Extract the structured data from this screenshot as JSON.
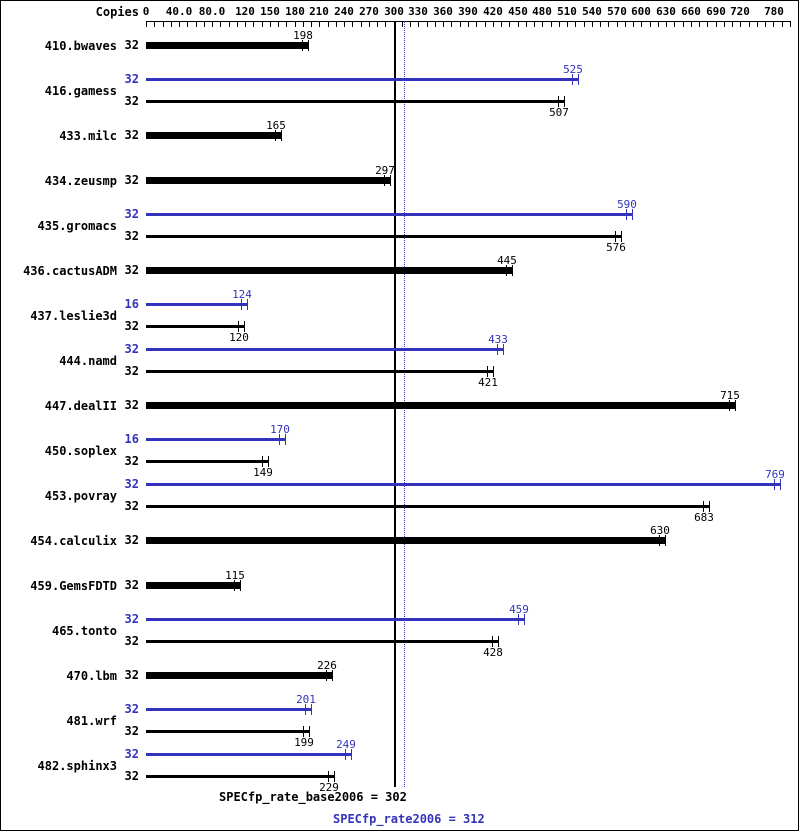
{
  "chart_data": {
    "type": "bar",
    "orientation": "horizontal",
    "copies_header": "Copies",
    "axis": {
      "min": 0,
      "max": 780,
      "tick_interval": 10,
      "labels": [
        {
          "value": 0,
          "text": "0"
        },
        {
          "value": 40,
          "text": "40.0"
        },
        {
          "value": 80,
          "text": "80.0"
        },
        {
          "value": 120,
          "text": "120"
        },
        {
          "value": 150,
          "text": "150"
        },
        {
          "value": 180,
          "text": "180"
        },
        {
          "value": 210,
          "text": "210"
        },
        {
          "value": 240,
          "text": "240"
        },
        {
          "value": 270,
          "text": "270"
        },
        {
          "value": 300,
          "text": "300"
        },
        {
          "value": 330,
          "text": "330"
        },
        {
          "value": 360,
          "text": "360"
        },
        {
          "value": 390,
          "text": "390"
        },
        {
          "value": 420,
          "text": "420"
        },
        {
          "value": 450,
          "text": "450"
        },
        {
          "value": 480,
          "text": "480"
        },
        {
          "value": 510,
          "text": "510"
        },
        {
          "value": 540,
          "text": "540"
        },
        {
          "value": 570,
          "text": "570"
        },
        {
          "value": 600,
          "text": "600"
        },
        {
          "value": 630,
          "text": "630"
        },
        {
          "value": 660,
          "text": "660"
        },
        {
          "value": 690,
          "text": "690"
        },
        {
          "value": 720,
          "text": "720"
        },
        {
          "value": 780,
          "text": "780"
        }
      ]
    },
    "colors": {
      "base": "#000000",
      "peak": "#3333bb"
    },
    "mean_lines": [
      {
        "name": "base",
        "value": 302,
        "style": "solid",
        "color": "#000000"
      },
      {
        "name": "peak",
        "value": 312,
        "style": "dotted",
        "color": "#3333bb"
      }
    ],
    "benchmarks": [
      {
        "name": "410.bwaves",
        "bars": [
          {
            "kind": "single",
            "copies": 32,
            "value": 198
          }
        ]
      },
      {
        "name": "416.gamess",
        "bars": [
          {
            "kind": "peak",
            "copies": 32,
            "value": 525
          },
          {
            "kind": "base",
            "copies": 32,
            "value": 507
          }
        ]
      },
      {
        "name": "433.milc",
        "bars": [
          {
            "kind": "single",
            "copies": 32,
            "value": 165
          }
        ]
      },
      {
        "name": "434.zeusmp",
        "bars": [
          {
            "kind": "single",
            "copies": 32,
            "value": 297
          }
        ]
      },
      {
        "name": "435.gromacs",
        "bars": [
          {
            "kind": "peak",
            "copies": 32,
            "value": 590
          },
          {
            "kind": "base",
            "copies": 32,
            "value": 576
          }
        ]
      },
      {
        "name": "436.cactusADM",
        "bars": [
          {
            "kind": "single",
            "copies": 32,
            "value": 445
          }
        ]
      },
      {
        "name": "437.leslie3d",
        "bars": [
          {
            "kind": "peak",
            "copies": 16,
            "value": 124
          },
          {
            "kind": "base",
            "copies": 32,
            "value": 120
          }
        ]
      },
      {
        "name": "444.namd",
        "bars": [
          {
            "kind": "peak",
            "copies": 32,
            "value": 433
          },
          {
            "kind": "base",
            "copies": 32,
            "value": 421
          }
        ]
      },
      {
        "name": "447.dealII",
        "bars": [
          {
            "kind": "single",
            "copies": 32,
            "value": 715
          }
        ]
      },
      {
        "name": "450.soplex",
        "bars": [
          {
            "kind": "peak",
            "copies": 16,
            "value": 170
          },
          {
            "kind": "base",
            "copies": 32,
            "value": 149
          }
        ]
      },
      {
        "name": "453.povray",
        "bars": [
          {
            "kind": "peak",
            "copies": 32,
            "value": 769
          },
          {
            "kind": "base",
            "copies": 32,
            "value": 683
          }
        ]
      },
      {
        "name": "454.calculix",
        "bars": [
          {
            "kind": "single",
            "copies": 32,
            "value": 630
          }
        ]
      },
      {
        "name": "459.GemsFDTD",
        "bars": [
          {
            "kind": "single",
            "copies": 32,
            "value": 115
          }
        ]
      },
      {
        "name": "465.tonto",
        "bars": [
          {
            "kind": "peak",
            "copies": 32,
            "value": 459
          },
          {
            "kind": "base",
            "copies": 32,
            "value": 428
          }
        ]
      },
      {
        "name": "470.lbm",
        "bars": [
          {
            "kind": "single",
            "copies": 32,
            "value": 226
          }
        ]
      },
      {
        "name": "481.wrf",
        "bars": [
          {
            "kind": "peak",
            "copies": 32,
            "value": 201
          },
          {
            "kind": "base",
            "copies": 32,
            "value": 199
          }
        ]
      },
      {
        "name": "482.sphinx3",
        "bars": [
          {
            "kind": "peak",
            "copies": 32,
            "value": 249
          },
          {
            "kind": "base",
            "copies": 32,
            "value": 229
          }
        ]
      }
    ],
    "captions": {
      "base": "SPECfp_rate_base2006 = 302",
      "peak": "SPECfp_rate2006 = 312"
    }
  }
}
